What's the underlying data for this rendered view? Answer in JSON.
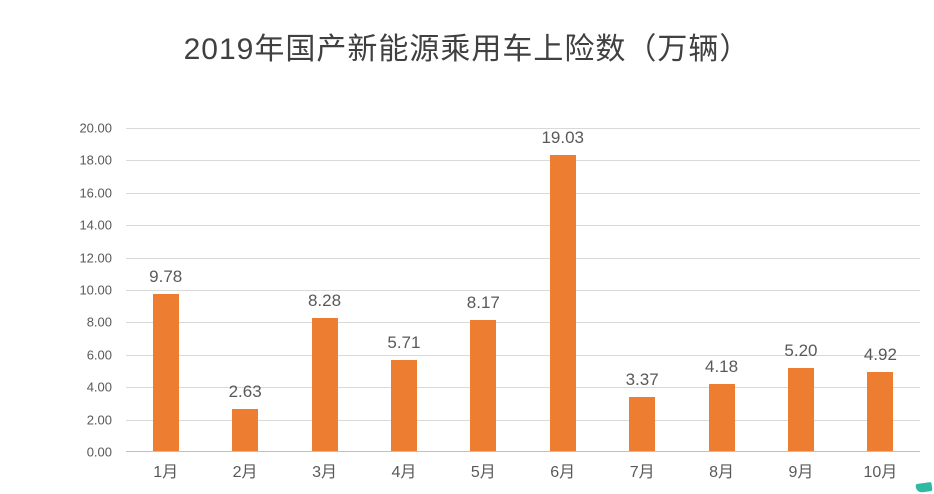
{
  "title": "2019年国产新能源乘用车上险数（万辆）",
  "chart_data": {
    "type": "bar",
    "title": "2019年国产新能源乘用车上险数（万辆）",
    "categories": [
      "1月",
      "2月",
      "3月",
      "4月",
      "5月",
      "6月",
      "7月",
      "8月",
      "9月",
      "10月"
    ],
    "values": [
      9.78,
      2.63,
      8.28,
      5.71,
      8.17,
      19.03,
      3.37,
      4.18,
      5.2,
      4.92
    ],
    "xlabel": "",
    "ylabel": "",
    "ylim": [
      0,
      20
    ],
    "ytick_step": 2,
    "ytick_labels": [
      "0.00",
      "2.00",
      "4.00",
      "6.00",
      "8.00",
      "10.00",
      "12.00",
      "14.00",
      "16.00",
      "18.00",
      "20.00"
    ],
    "grid": true,
    "legend_position": "none"
  },
  "colors": {
    "bar": "#ed7d31",
    "grid": "#d9d9d9",
    "axis_text": "#595959",
    "title_text": "#404040"
  }
}
